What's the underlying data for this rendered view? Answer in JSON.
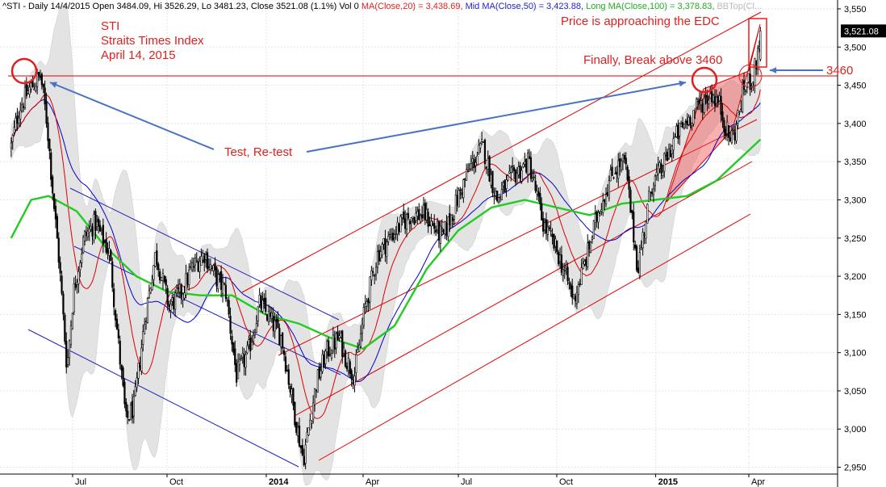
{
  "header": {
    "symbol_text": "^STI - Daily 14/4/2015 Open 3484.09, Hi 3526.29, Lo 3481.23, Close 3521.08 (1.1%) Vol 0",
    "ma20_text": "MA(Close,20) = 3,438.69,",
    "ma50_text": "Mid MA(Close,50) = 3,423.88,",
    "ma100_text": "Long MA(Close,100) = 3,378.83,",
    "bb_text": "BBTop(Cl..."
  },
  "annotations": {
    "title_line1": "STI",
    "title_line2": "Straits Times Index",
    "title_line3": "April 14, 2015",
    "edc_note": "Price is approaching the EDC",
    "break_note": "Finally, Break above 3460",
    "retest_note": "Test, Re-test",
    "level_note": "3460"
  },
  "last_price_label": "3,521.08",
  "colors": {
    "accent_red": "#e02020",
    "candle": "#000000",
    "ma20": "#dd0000",
    "ma50": "#0000cc",
    "ma100": "#22cc22",
    "band_fill": "#e3e3e3",
    "blue_channel": "#2222bb",
    "red_channel": "#dd0000",
    "arrow_blue": "#4a72c4",
    "header_red": "#dd2222",
    "header_blue": "#2222cc",
    "header_green": "#22aa22",
    "header_gray": "#bbbbbb"
  },
  "chart_data": {
    "type": "candlestick",
    "symbol": "^STI",
    "interval": "Daily",
    "ylim": [
      2940,
      3560
    ],
    "y_ticks": [
      {
        "value": 3550,
        "label": "3,550"
      },
      {
        "value": 3500,
        "label": "3,500"
      },
      {
        "value": 3450,
        "label": "3,450"
      },
      {
        "value": 3400,
        "label": "3,400"
      },
      {
        "value": 3350,
        "label": "3,350"
      },
      {
        "value": 3300,
        "label": "3,300"
      },
      {
        "value": 3250,
        "label": "3,250"
      },
      {
        "value": 3200,
        "label": "3,200"
      },
      {
        "value": 3150,
        "label": "3,150"
      },
      {
        "value": 3100,
        "label": "3,100"
      },
      {
        "value": 3050,
        "label": "3,050"
      },
      {
        "value": 3000,
        "label": "3,000"
      },
      {
        "value": 2950,
        "label": "2,950"
      }
    ],
    "x_ticks": [
      {
        "date": "2013-07-01",
        "label": "Jul",
        "bold": false
      },
      {
        "date": "2013-10-01",
        "label": "Oct",
        "bold": false
      },
      {
        "date": "2014-01-02",
        "label": "2014",
        "bold": true
      },
      {
        "date": "2014-04-01",
        "label": "Apr",
        "bold": false
      },
      {
        "date": "2014-07-01",
        "label": "Jul",
        "bold": false
      },
      {
        "date": "2014-10-01",
        "label": "Oct",
        "bold": false
      },
      {
        "date": "2015-01-02",
        "label": "2015",
        "bold": true
      },
      {
        "date": "2015-04-01",
        "label": "Apr",
        "bold": false
      }
    ],
    "last": {
      "date": "2015-04-14",
      "open": 3484.09,
      "high": 3526.29,
      "low": 3481.23,
      "close": 3521.08,
      "change_pct": 1.1
    },
    "support_resistance": [
      {
        "value": 3460,
        "label": "3460"
      }
    ],
    "price_path": [
      {
        "date": "2013-04-15",
        "close": 3370
      },
      {
        "date": "2013-04-25",
        "close": 3420
      },
      {
        "date": "2013-05-08",
        "close": 3445
      },
      {
        "date": "2013-05-22",
        "close": 3462
      },
      {
        "date": "2013-05-30",
        "close": 3400
      },
      {
        "date": "2013-06-07",
        "close": 3300
      },
      {
        "date": "2013-06-14",
        "close": 3220
      },
      {
        "date": "2013-06-24",
        "close": 3080
      },
      {
        "date": "2013-07-02",
        "close": 3180
      },
      {
        "date": "2013-07-12",
        "close": 3250
      },
      {
        "date": "2013-07-23",
        "close": 3270
      },
      {
        "date": "2013-08-06",
        "close": 3230
      },
      {
        "date": "2013-08-22",
        "close": 3010
      },
      {
        "date": "2013-08-30",
        "close": 3030
      },
      {
        "date": "2013-09-10",
        "close": 3150
      },
      {
        "date": "2013-09-20",
        "close": 3230
      },
      {
        "date": "2013-10-03",
        "close": 3160
      },
      {
        "date": "2013-10-15",
        "close": 3180
      },
      {
        "date": "2013-10-24",
        "close": 3210
      },
      {
        "date": "2013-11-05",
        "close": 3230
      },
      {
        "date": "2013-11-15",
        "close": 3200
      },
      {
        "date": "2013-11-25",
        "close": 3180
      },
      {
        "date": "2013-12-05",
        "close": 3070
      },
      {
        "date": "2013-12-16",
        "close": 3100
      },
      {
        "date": "2013-12-27",
        "close": 3165
      },
      {
        "date": "2014-01-07",
        "close": 3140
      },
      {
        "date": "2014-01-16",
        "close": 3120
      },
      {
        "date": "2014-01-28",
        "close": 3020
      },
      {
        "date": "2014-02-05",
        "close": 2960
      },
      {
        "date": "2014-02-17",
        "close": 3060
      },
      {
        "date": "2014-02-26",
        "close": 3100
      },
      {
        "date": "2014-03-10",
        "close": 3120
      },
      {
        "date": "2014-03-17",
        "close": 3090
      },
      {
        "date": "2014-03-24",
        "close": 3070
      },
      {
        "date": "2014-04-03",
        "close": 3160
      },
      {
        "date": "2014-04-15",
        "close": 3230
      },
      {
        "date": "2014-05-02",
        "close": 3260
      },
      {
        "date": "2014-05-16",
        "close": 3280
      },
      {
        "date": "2014-05-30",
        "close": 3280
      },
      {
        "date": "2014-06-16",
        "close": 3250
      },
      {
        "date": "2014-06-30",
        "close": 3300
      },
      {
        "date": "2014-07-11",
        "close": 3340
      },
      {
        "date": "2014-07-24",
        "close": 3370
      },
      {
        "date": "2014-08-06",
        "close": 3300
      },
      {
        "date": "2014-08-20",
        "close": 3330
      },
      {
        "date": "2014-09-05",
        "close": 3350
      },
      {
        "date": "2014-09-18",
        "close": 3270
      },
      {
        "date": "2014-10-02",
        "close": 3230
      },
      {
        "date": "2014-10-17",
        "close": 3170
      },
      {
        "date": "2014-10-28",
        "close": 3220
      },
      {
        "date": "2014-11-10",
        "close": 3290
      },
      {
        "date": "2014-11-24",
        "close": 3340
      },
      {
        "date": "2014-12-04",
        "close": 3350
      },
      {
        "date": "2014-12-16",
        "close": 3210
      },
      {
        "date": "2014-12-29",
        "close": 3320
      },
      {
        "date": "2015-01-08",
        "close": 3340
      },
      {
        "date": "2015-01-20",
        "close": 3380
      },
      {
        "date": "2015-01-30",
        "close": 3400
      },
      {
        "date": "2015-02-10",
        "close": 3420
      },
      {
        "date": "2015-02-24",
        "close": 3440
      },
      {
        "date": "2015-03-04",
        "close": 3425
      },
      {
        "date": "2015-03-13",
        "close": 3380
      },
      {
        "date": "2015-03-19",
        "close": 3390
      },
      {
        "date": "2015-03-27",
        "close": 3445
      },
      {
        "date": "2015-04-06",
        "close": 3462
      },
      {
        "date": "2015-04-10",
        "close": 3484
      },
      {
        "date": "2015-04-14",
        "close": 3521
      }
    ],
    "ma_series": [
      {
        "name": "MA(Close,20)",
        "last": 3438.69
      },
      {
        "name": "Mid MA(Close,50)",
        "last": 3423.88
      },
      {
        "name": "Long MA(Close,100)",
        "last": 3378.83,
        "points": [
          {
            "date": "2013-04-15",
            "value": 3250
          },
          {
            "date": "2013-05-10",
            "value": 3300
          },
          {
            "date": "2013-06-01",
            "value": 3305
          },
          {
            "date": "2013-07-05",
            "value": 3285
          },
          {
            "date": "2013-08-01",
            "value": 3240
          },
          {
            "date": "2013-09-01",
            "value": 3200
          },
          {
            "date": "2013-10-01",
            "value": 3180
          },
          {
            "date": "2013-11-01",
            "value": 3175
          },
          {
            "date": "2013-12-01",
            "value": 3175
          },
          {
            "date": "2014-01-01",
            "value": 3150
          },
          {
            "date": "2014-02-01",
            "value": 3138
          },
          {
            "date": "2014-03-01",
            "value": 3120
          },
          {
            "date": "2014-04-01",
            "value": 3105
          },
          {
            "date": "2014-05-01",
            "value": 3135
          },
          {
            "date": "2014-06-01",
            "value": 3210
          },
          {
            "date": "2014-07-01",
            "value": 3260
          },
          {
            "date": "2014-08-01",
            "value": 3290
          },
          {
            "date": "2014-09-01",
            "value": 3300
          },
          {
            "date": "2014-10-01",
            "value": 3290
          },
          {
            "date": "2014-11-01",
            "value": 3280
          },
          {
            "date": "2014-12-01",
            "value": 3295
          },
          {
            "date": "2015-01-01",
            "value": 3300
          },
          {
            "date": "2015-02-01",
            "value": 3305
          },
          {
            "date": "2015-03-01",
            "value": 3325
          },
          {
            "date": "2015-04-14",
            "value": 3379
          }
        ]
      }
    ]
  }
}
